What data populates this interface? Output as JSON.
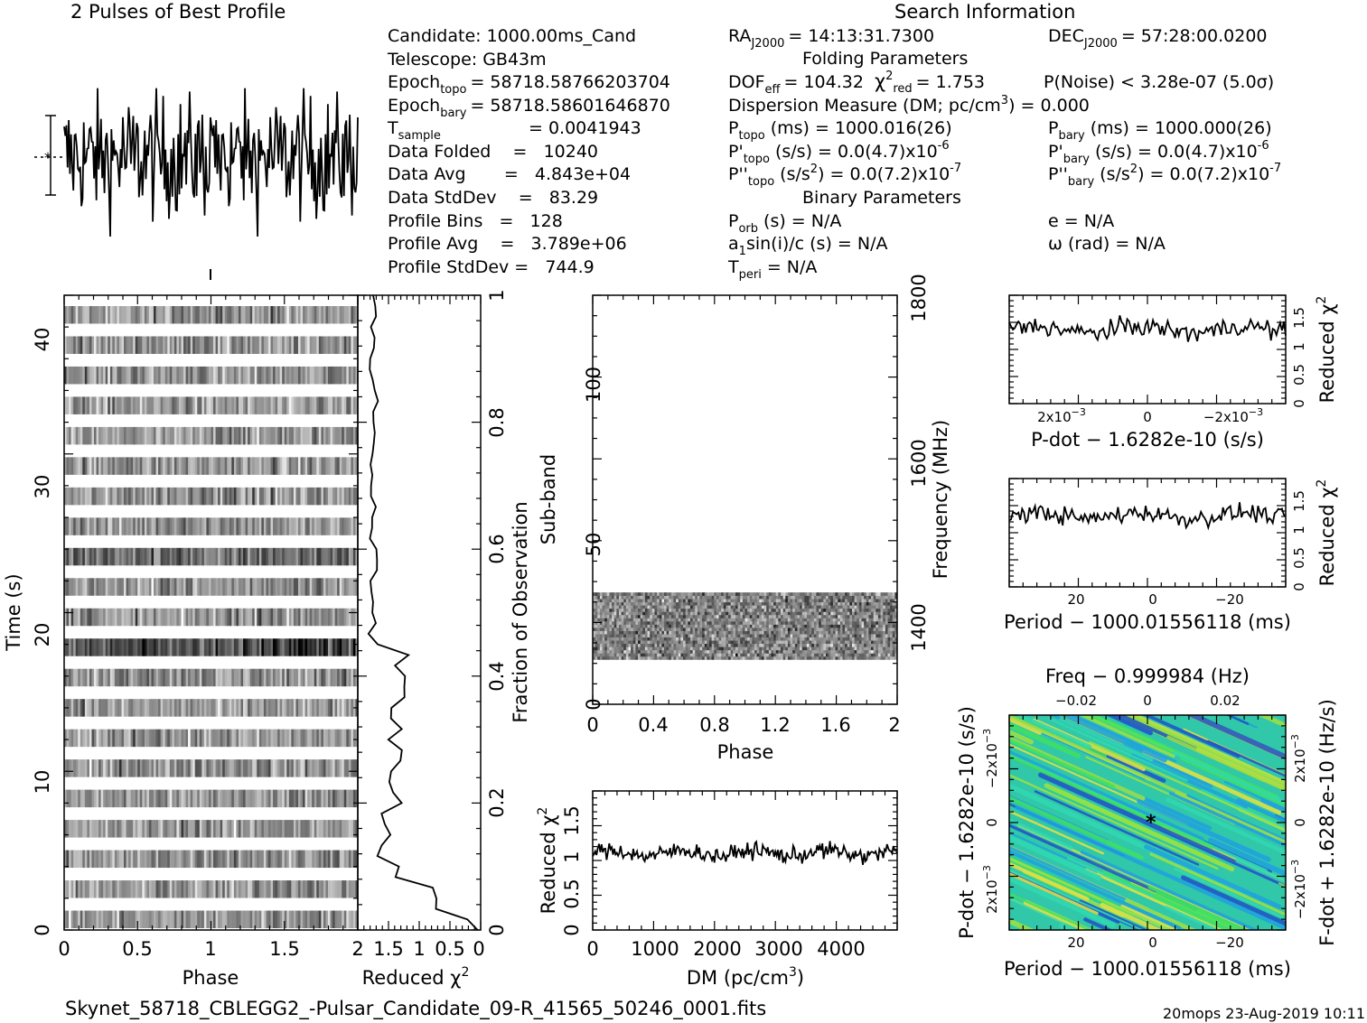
{
  "header": {
    "profile_title": "2 Pulses of Best Profile",
    "search_title": "Search Information",
    "folding_title": "Folding Parameters",
    "binary_title": "Binary Parameters",
    "filename": "Skynet_58718_CBLEGG2_-Pulsar_Candidate_09-R_41565_50246_0001.fits",
    "footer_right": "20mops 23-Aug-2019 10:11"
  },
  "info_left": {
    "candidate": "Candidate:  1000.00ms_Cand",
    "telescope": "Telescope:  GB43m",
    "epoch_topo_label": "Epoch",
    "epoch_topo_sub": "topo",
    "epoch_topo_val": "= 58718.58766203704",
    "epoch_bary_label": "Epoch",
    "epoch_bary_sub": "bary",
    "epoch_bary_val": "= 58718.58601646870",
    "tsample_label": "T",
    "tsample_sub": "sample",
    "tsample_val": "=   0.0041943",
    "data_folded": "Data Folded    =   10240",
    "data_avg": "Data Avg       =   4.843e+04",
    "data_stddev": "Data StdDev    =   83.29",
    "profile_bins": "Profile Bins   =   128",
    "profile_avg": "Profile Avg    =   3.789e+06",
    "profile_stddev": "Profile StdDev =   744.9"
  },
  "info_mid": {
    "ra_label": "RA",
    "ra_sub": "J2000",
    "ra_val": "= 14:13:31.7300",
    "dof_label": "DOF",
    "dof_sub": "eff",
    "dof_val": "= 104.32",
    "chi_label": "χ",
    "chi_sup": "2",
    "chi_sub": "red",
    "chi_val": "= 1.753",
    "dm_text": "Dispersion Measure (DM; pc/cm",
    "dm_sup": "3",
    "dm_val": ") = 0.000",
    "ptopo_label": "P",
    "ptopo_sub": "topo",
    "ptopo_val": "(ms) =  1000.016(26)",
    "pdtopo_label": "P'",
    "pdtopo_sub": "topo",
    "pdtopo_val": "(s/s) = 0.0(4.7)x10",
    "pdtopo_exp": "-6",
    "pddtopo_label": "P''",
    "pddtopo_sub": "topo",
    "pddtopo_val": "(s/s",
    "pddtopo_sup": "2",
    "pddtopo_val2": ") = 0.0(7.2)x10",
    "pddtopo_exp": "-7",
    "porb_label": "P",
    "porb_sub": "orb",
    "porb_val": "(s) = N/A",
    "a1_label": "a",
    "a1_sub": "1",
    "a1_val": "sin(i)/c (s) = N/A",
    "tperi_label": "T",
    "tperi_sub": "peri",
    "tperi_val": "= N/A"
  },
  "info_right": {
    "dec_label": "DEC",
    "dec_sub": "J2000",
    "dec_val": "= 57:28:00.0200",
    "pnoise": "P(Noise) < 3.28e-07  (5.0σ)",
    "pbary_label": "P",
    "pbary_sub": "bary",
    "pbary_val": "(ms) =  1000.000(26)",
    "pdbary_label": "P'",
    "pdbary_sub": "bary",
    "pdbary_val": "(s/s) = 0.0(4.7)x10",
    "pdbary_exp": "-6",
    "pddbary_label": "P''",
    "pddbary_sub": "bary",
    "pddbary_val": "(s/s",
    "pddbary_sup": "2",
    "pddbary_val2": ") = 0.0(7.2)x10",
    "pddbary_exp": "-7",
    "ecc": "e = N/A",
    "omega": "ω (rad) = N/A"
  },
  "chart_data": [
    {
      "id": "profile",
      "type": "line",
      "title": "2 Pulses of Best Profile",
      "x_range": [
        0,
        2
      ],
      "n_points": 256,
      "y_mean": 3789000,
      "y_stddev": 744.9
    },
    {
      "id": "time_phase",
      "type": "heatmap",
      "xlabel": "Phase",
      "ylabel": "Time (s)",
      "xticks": [
        "0",
        "0.5",
        "1",
        "1.5",
        "2"
      ],
      "yticks": [
        "0",
        "10",
        "20",
        "30",
        "40"
      ],
      "x_range": [
        0,
        2
      ],
      "y_range": [
        0,
        43
      ]
    },
    {
      "id": "time_chi",
      "type": "line",
      "xlabel": "Reduced χ",
      "xlabel_sup": "2",
      "ylabel": "Fraction of Observation",
      "xticks": [
        "1.5",
        "1",
        "0.5",
        "0"
      ],
      "yticks": [
        "0",
        "0.2",
        "0.4",
        "0.6",
        "0.8",
        "1"
      ],
      "x_range": [
        2,
        0
      ],
      "y_range": [
        0,
        1
      ]
    },
    {
      "id": "subband_phase",
      "type": "heatmap",
      "xlabel": "Phase",
      "ylabel": "Sub-band",
      "ylabel_right": "Frequency (MHz)",
      "xticks": [
        "0",
        "0.4",
        "0.8",
        "1.2",
        "1.6",
        "2"
      ],
      "yticks": [
        "0",
        "50",
        "100"
      ],
      "yticks_right": [
        "1400",
        "1600",
        "1800"
      ],
      "x_range": [
        0,
        2
      ],
      "y_range": [
        0,
        128
      ],
      "active_subbands": [
        14,
        35
      ]
    },
    {
      "id": "dm_chi",
      "type": "line",
      "xlabel": "DM (pc/cm",
      "xlabel_sup": "3",
      "xlabel_end": ")",
      "ylabel": "Reduced χ",
      "ylabel_sup": "2",
      "xticks": [
        "0",
        "1000",
        "2000",
        "3000",
        "4000"
      ],
      "yticks": [
        "0",
        "0.5",
        "1",
        "1.5"
      ],
      "x_range": [
        0,
        4900
      ],
      "y_range": [
        0,
        1.9
      ],
      "y_mean": 1.05
    },
    {
      "id": "pdot_chi",
      "type": "line",
      "xlabel": "P-dot − 1.6282e-10 (s/s)",
      "ylabel": "Reduced χ",
      "ylabel_sup": "2",
      "xticks": [
        "2x10",
        "0",
        "−2x10"
      ],
      "xticks_exp": "−3",
      "yticks": [
        "0",
        "0.5",
        "1",
        "1.5"
      ],
      "y_range": [
        0,
        1.9
      ],
      "y_mean": 1.3
    },
    {
      "id": "period_chi",
      "type": "line",
      "xlabel": "Period − 1000.01556118 (ms)",
      "ylabel": "Reduced χ",
      "ylabel_sup": "2",
      "xticks": [
        "20",
        "0",
        "−20"
      ],
      "yticks": [
        "0",
        "0.5",
        "1",
        "1.5"
      ],
      "y_range": [
        0,
        1.9
      ],
      "y_mean": 1.25
    },
    {
      "id": "ppdot_map",
      "type": "heatmap",
      "title": "Freq − 0.999984 (Hz)",
      "xlabel": "Period − 1000.01556118 (ms)",
      "ylabel": "P-dot − 1.6282e-10 (s/s)",
      "ylabel_right": "F-dot + 1.6282e-10 (Hz/s)",
      "xticks": [
        "20",
        "0",
        "−20"
      ],
      "xticks_top": [
        "−0.02",
        "0",
        "0.02"
      ],
      "yticks": [
        "−2x10",
        "0",
        "2x10"
      ],
      "yticks_exp": "−3",
      "yticks_right": [
        "2x10",
        "0",
        "−2x10"
      ],
      "yticks_right_exp": "−3",
      "colors": [
        "#2050c8",
        "#20a0e0",
        "#30d8b0",
        "#40e060",
        "#a0e040",
        "#e8e040"
      ]
    }
  ]
}
